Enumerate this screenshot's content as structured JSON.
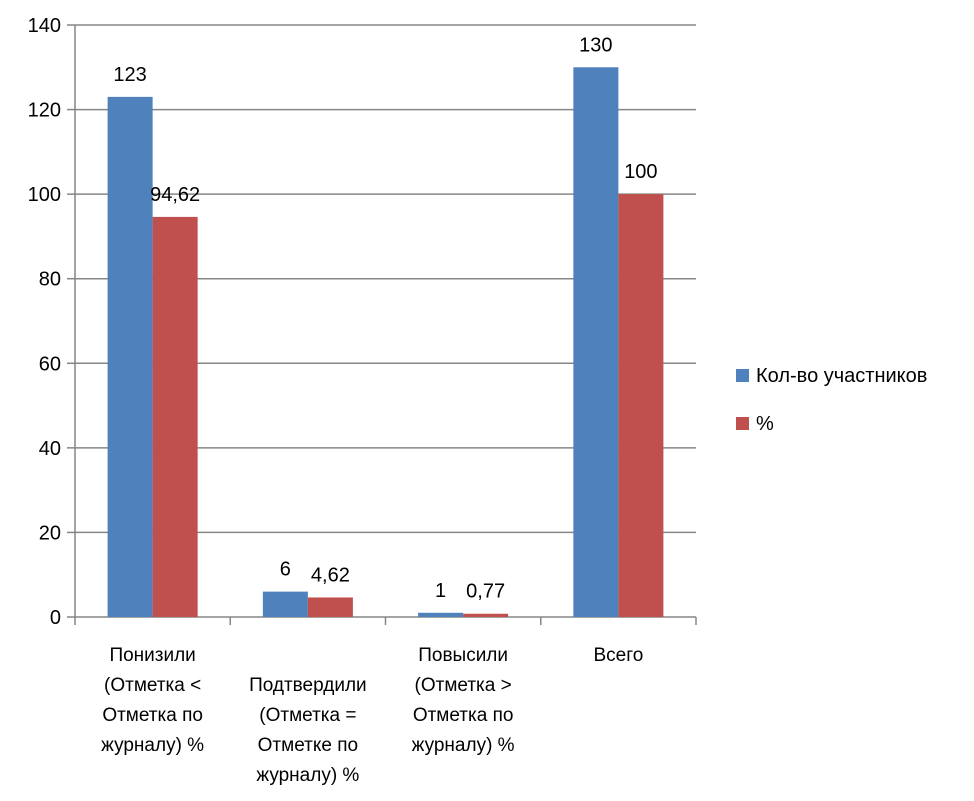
{
  "chart_data": {
    "type": "bar",
    "categories": [
      [
        "Понизили",
        "(Отметка <",
        "Отметка по",
        "журналу) %"
      ],
      [
        "Подтвердили",
        "(Отметка =",
        "Отметке по",
        "журналу) %"
      ],
      [
        "Повысили",
        "(Отметка >",
        "Отметка по",
        "журналу) %"
      ],
      [
        "Всего"
      ]
    ],
    "series": [
      {
        "name": "Кол-во участников",
        "color": "#4F81BD",
        "values": [
          123,
          6,
          1,
          130
        ],
        "labels": [
          "123",
          "6",
          "1",
          "130"
        ]
      },
      {
        "name": "%",
        "color": "#C0504D",
        "values": [
          94.62,
          4.62,
          0.77,
          100
        ],
        "labels": [
          "94,62",
          "4,62",
          "0,77",
          "100"
        ]
      }
    ],
    "ylim": [
      0,
      140
    ],
    "yticks": [
      0,
      20,
      40,
      60,
      80,
      100,
      120,
      140
    ],
    "grid": true,
    "legend": "right",
    "title": "",
    "xlabel": "",
    "ylabel": ""
  }
}
